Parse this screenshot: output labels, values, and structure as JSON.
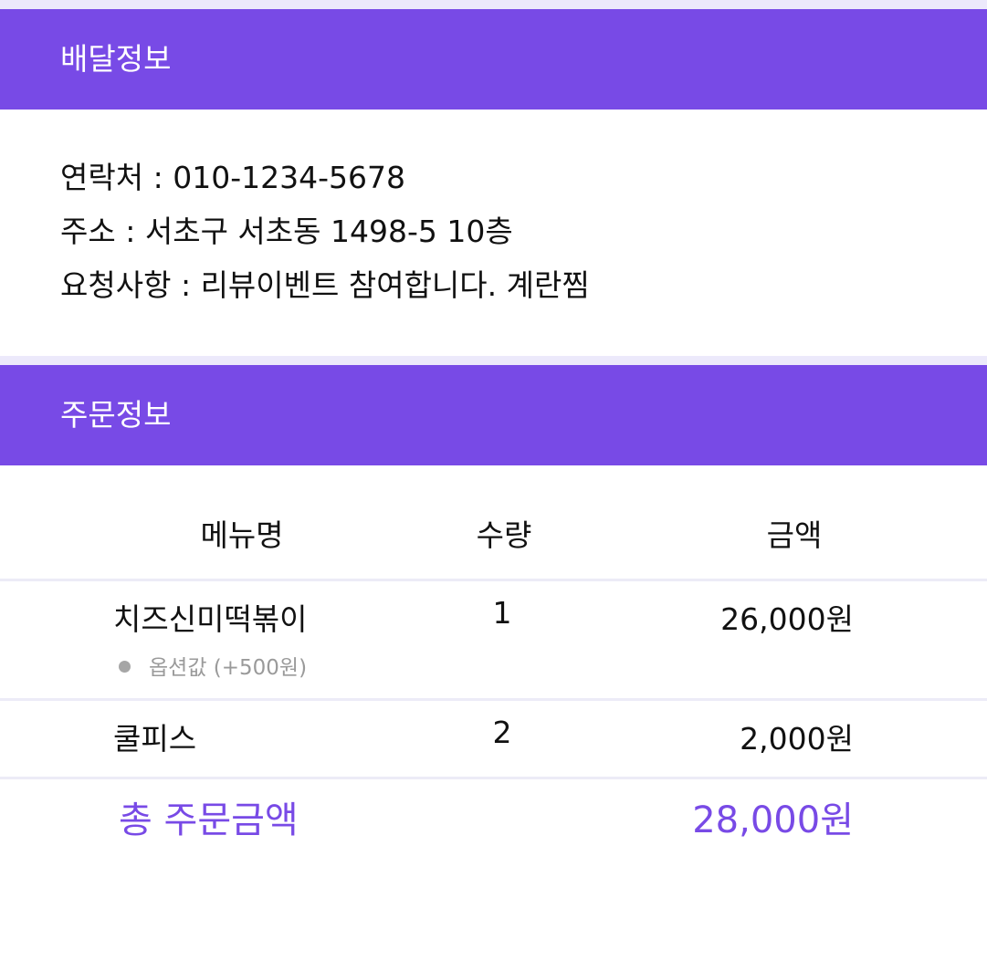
{
  "colors": {
    "accent": "#784ae6",
    "divider": "#ecebf7",
    "strip": "#ece9fb",
    "option_text": "#9a9a9a"
  },
  "delivery": {
    "title": "배달정보",
    "lines": [
      {
        "label": "연락처",
        "sep": " : ",
        "value": "010-1234-5678"
      },
      {
        "label": "주소",
        "sep": " : ",
        "value": "서초구 서초동 1498-5 10층"
      },
      {
        "label": "요청사항",
        "sep": " : ",
        "value": "리뷰이벤트 참여합니다. 계란찜"
      }
    ]
  },
  "order": {
    "title": "주문정보",
    "columns": {
      "name": "메뉴명",
      "qty": "수량",
      "price": "금액"
    },
    "items": [
      {
        "name": "치즈신미떡볶이",
        "qty": "1",
        "price": "26,000원",
        "option": "옵션값 (+500원)"
      },
      {
        "name": "쿨피스",
        "qty": "2",
        "price": "2,000원"
      }
    ],
    "total": {
      "label": "총 주문금액",
      "value": "28,000원"
    }
  },
  "icons": {
    "option_bullet": "bullet-dot-icon"
  }
}
